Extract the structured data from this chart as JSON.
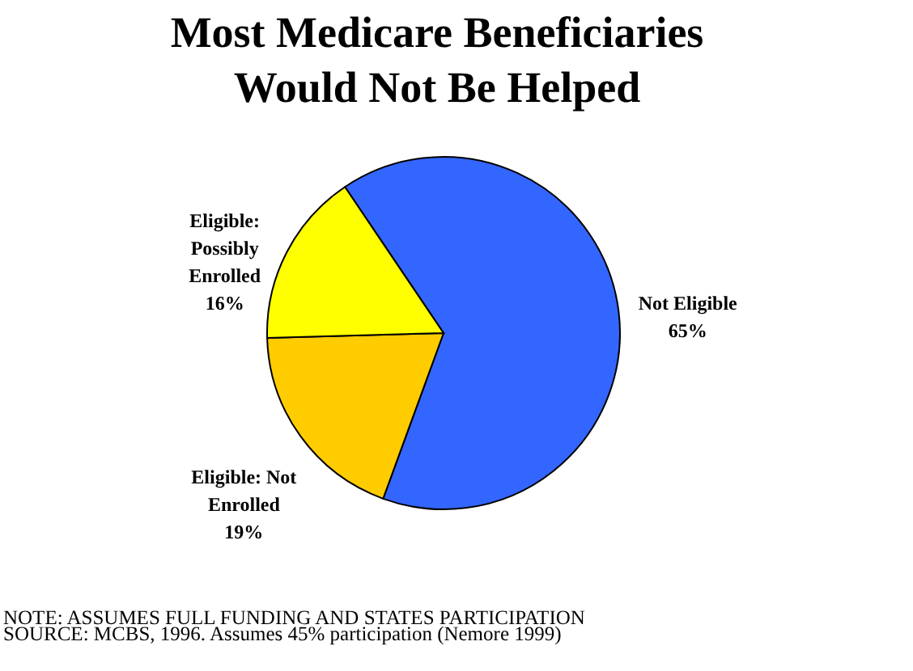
{
  "chart_data": {
    "type": "pie",
    "title": "Most Medicare Beneficiaries\nWould Not Be Helped",
    "categories": [
      "Not Eligible",
      "Eligible: Not Enrolled",
      "Eligible: Possibly Enrolled"
    ],
    "values": [
      65,
      19,
      16
    ],
    "value_labels": [
      "65%",
      "19%",
      "16%"
    ],
    "colors": [
      "#3366ff",
      "#ffcc00",
      "#ffff00"
    ],
    "annotations": [
      "NOTE:  ASSUMES FULL FUNDING AND  STATES PARTICIPATION",
      "SOURCE:  MCBS, 1996.  Assumes 45% participation (Nemore 1999)"
    ]
  }
}
